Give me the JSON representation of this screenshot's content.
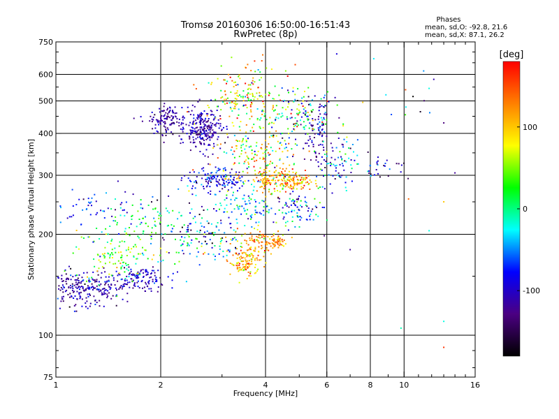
{
  "chart_data": {
    "type": "scatter",
    "title": "Tromsø 20160306 16:50:00-16:51:43",
    "subtitle": "RwPretec (8p)",
    "stats_title": "Phases",
    "stats_o": "mean, sd,O: -92.8, 21.6",
    "stats_x": "mean, sd,X:  87.1, 26.2",
    "xlabel": "Frequency [MHz]",
    "ylabel": "Stationary phase Virtual Height [km]",
    "x_scale": "log",
    "y_scale": "log",
    "xlim": [
      1,
      16
    ],
    "ylim": [
      75,
      750
    ],
    "grid": true,
    "x_ticks": [
      {
        "v": 1,
        "label": "1"
      },
      {
        "v": 2,
        "label": "2"
      },
      {
        "v": 4,
        "label": "4"
      },
      {
        "v": 6,
        "label": "6"
      },
      {
        "v": 8,
        "label": "8"
      },
      {
        "v": 10,
        "label": "10"
      },
      {
        "v": 16,
        "label": "16"
      }
    ],
    "x_gridlines": [
      2,
      4,
      6,
      8,
      10
    ],
    "y_ticks": [
      {
        "v": 75,
        "label": "75"
      },
      {
        "v": 100,
        "label": "100"
      },
      {
        "v": 200,
        "label": "200"
      },
      {
        "v": 300,
        "label": "300"
      },
      {
        "v": 400,
        "label": "400"
      },
      {
        "v": 500,
        "label": "500"
      },
      {
        "v": 600,
        "label": "600"
      },
      {
        "v": 750,
        "label": "750"
      }
    ],
    "y_gridlines": [
      100,
      200,
      300,
      400,
      500,
      600
    ],
    "colorbar": {
      "unit_label": "[deg]",
      "range": [
        -180,
        180
      ],
      "ticks": [
        {
          "v": 100,
          "label": "100"
        },
        {
          "v": 0,
          "label": "0"
        },
        {
          "v": -100,
          "label": "-100"
        }
      ],
      "stops": [
        "#000000",
        "#4b0082",
        "#0000ff",
        "#00ffff",
        "#00ff00",
        "#ffff00",
        "#ff8000",
        "#ff0000"
      ]
    },
    "clusters": [
      {
        "x": 1.2,
        "y": 138,
        "dx": 0.15,
        "dy": 0.06,
        "n": 260,
        "phase": -110,
        "sd": 25
      },
      {
        "x": 1.7,
        "y": 148,
        "dx": 0.1,
        "dy": 0.04,
        "n": 120,
        "phase": -100,
        "sd": 20
      },
      {
        "x": 1.5,
        "y": 175,
        "dx": 0.14,
        "dy": 0.1,
        "n": 130,
        "phase": 30,
        "sd": 40
      },
      {
        "x": 1.8,
        "y": 220,
        "dx": 0.1,
        "dy": 0.06,
        "n": 50,
        "phase": 10,
        "sd": 25
      },
      {
        "x": 1.3,
        "y": 240,
        "dx": 0.18,
        "dy": 0.08,
        "n": 60,
        "phase": -80,
        "sd": 30
      },
      {
        "x": 2.1,
        "y": 440,
        "dx": 0.06,
        "dy": 0.05,
        "n": 120,
        "phase": -115,
        "sd": 15
      },
      {
        "x": 2.65,
        "y": 410,
        "dx": 0.06,
        "dy": 0.07,
        "n": 240,
        "phase": -110,
        "sd": 18
      },
      {
        "x": 2.9,
        "y": 290,
        "dx": 0.1,
        "dy": 0.04,
        "n": 140,
        "phase": -90,
        "sd": 25
      },
      {
        "x": 2.6,
        "y": 200,
        "dx": 0.15,
        "dy": 0.12,
        "n": 160,
        "phase": -40,
        "sd": 70
      },
      {
        "x": 3.5,
        "y": 165,
        "dx": 0.05,
        "dy": 0.05,
        "n": 120,
        "phase": 110,
        "sd": 30
      },
      {
        "x": 3.9,
        "y": 190,
        "dx": 0.08,
        "dy": 0.04,
        "n": 90,
        "phase": 100,
        "sd": 40
      },
      {
        "x": 4.3,
        "y": 190,
        "dx": 0.03,
        "dy": 0.02,
        "n": 40,
        "phase": 130,
        "sd": 15
      },
      {
        "x": 3.6,
        "y": 240,
        "dx": 0.1,
        "dy": 0.06,
        "n": 90,
        "phase": -30,
        "sd": 40
      },
      {
        "x": 4.5,
        "y": 290,
        "dx": 0.1,
        "dy": 0.04,
        "n": 200,
        "phase": 110,
        "sd": 40
      },
      {
        "x": 3.8,
        "y": 340,
        "dx": 0.15,
        "dy": 0.1,
        "n": 170,
        "phase": 60,
        "sd": 70
      },
      {
        "x": 3.5,
        "y": 520,
        "dx": 0.14,
        "dy": 0.1,
        "n": 170,
        "phase": 80,
        "sd": 60
      },
      {
        "x": 4.9,
        "y": 450,
        "dx": 0.14,
        "dy": 0.1,
        "n": 160,
        "phase": -20,
        "sd": 80
      },
      {
        "x": 5.6,
        "y": 400,
        "dx": 0.04,
        "dy": 0.1,
        "n": 70,
        "phase": -115,
        "sd": 20
      },
      {
        "x": 5.0,
        "y": 240,
        "dx": 0.08,
        "dy": 0.06,
        "n": 80,
        "phase": -60,
        "sd": 50
      },
      {
        "x": 6.5,
        "y": 330,
        "dx": 0.07,
        "dy": 0.08,
        "n": 80,
        "phase": -60,
        "sd": 60
      },
      {
        "x": 8.5,
        "y": 320,
        "dx": 0.08,
        "dy": 0.05,
        "n": 30,
        "phase": -100,
        "sd": 40
      },
      {
        "x": 11,
        "y": 500,
        "dx": 0.2,
        "dy": 0.15,
        "n": 12,
        "phase": 0,
        "sd": 100
      }
    ],
    "points": [
      {
        "x": 13.0,
        "y": 92,
        "phase": 160
      },
      {
        "x": 13.0,
        "y": 110,
        "phase": -20
      },
      {
        "x": 9.8,
        "y": 105,
        "phase": -10
      },
      {
        "x": 11.8,
        "y": 205,
        "phase": -20
      },
      {
        "x": 7.0,
        "y": 180,
        "phase": -120
      },
      {
        "x": 5.9,
        "y": 198,
        "phase": -130
      },
      {
        "x": 13.0,
        "y": 250,
        "phase": 100
      },
      {
        "x": 10.3,
        "y": 255,
        "phase": 140
      },
      {
        "x": 14.0,
        "y": 305,
        "phase": -120
      },
      {
        "x": 13.0,
        "y": 430,
        "phase": -130
      },
      {
        "x": 10.1,
        "y": 540,
        "phase": 150
      },
      {
        "x": 11.8,
        "y": 545,
        "phase": -20
      }
    ]
  }
}
